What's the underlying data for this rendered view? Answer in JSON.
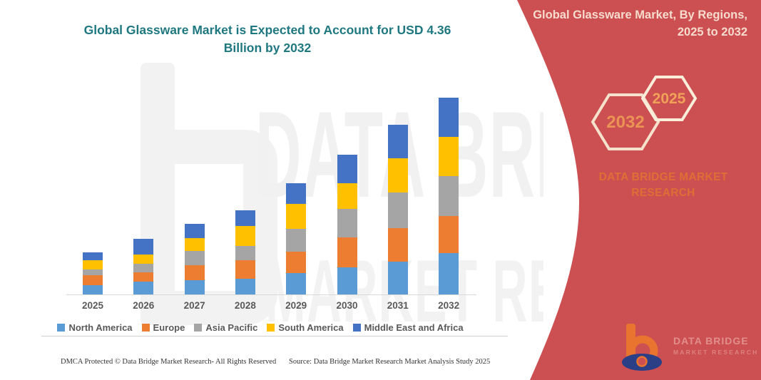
{
  "page": {
    "background": "#FFFFFF",
    "panel_color": "#CC4F52"
  },
  "chart_data": {
    "type": "bar",
    "stacked": true,
    "title": "Global Glassware Market is Expected to Account for USD 4.36 Billion by 2032",
    "unit": "USD Billion",
    "categories": [
      "2025",
      "2026",
      "2027",
      "2028",
      "2029",
      "2030",
      "2031",
      "2032"
    ],
    "series": [
      {
        "name": "North America",
        "color": "#5B9BD5",
        "values": [
          0.21,
          0.28,
          0.32,
          0.35,
          0.47,
          0.6,
          0.73,
          0.92
        ]
      },
      {
        "name": "Europe",
        "color": "#ED7D31",
        "values": [
          0.21,
          0.21,
          0.33,
          0.41,
          0.47,
          0.66,
          0.74,
          0.82
        ]
      },
      {
        "name": "Asia Pacific",
        "color": "#A5A5A5",
        "values": [
          0.13,
          0.19,
          0.32,
          0.32,
          0.52,
          0.63,
          0.79,
          0.88
        ]
      },
      {
        "name": "South America",
        "color": "#FFC000",
        "values": [
          0.21,
          0.21,
          0.28,
          0.44,
          0.55,
          0.57,
          0.76,
          0.87
        ]
      },
      {
        "name": "Middle East and Africa",
        "color": "#4472C4",
        "values": [
          0.17,
          0.35,
          0.32,
          0.35,
          0.46,
          0.63,
          0.74,
          0.87
        ]
      }
    ],
    "totals": [
      0.93,
      1.24,
      1.57,
      1.87,
      2.47,
      3.09,
      3.76,
      4.36
    ],
    "ylim": [
      0,
      4.36
    ],
    "y_axis_visible": false,
    "gridlines": false,
    "legend_position": "bottom"
  },
  "watermark": {
    "row1": "DATA BRI",
    "row2": "MARKET RESE"
  },
  "side_panel": {
    "title": "Global Glassware Market, By Regions, 2025 to 2032",
    "hexagon_back_label": "2032",
    "hexagon_front_label": "2025",
    "brand": "DATA BRIDGE MARKET RESEARCH",
    "logo_line1": "DATA BRIDGE",
    "logo_line2": "MARKET RESEARCH"
  },
  "footer": {
    "left": "DMCA Protected © Data Bridge Market Research- All Rights Reserved",
    "source": "Source: Data Bridge Market Research Market Analysis Study 2025"
  }
}
